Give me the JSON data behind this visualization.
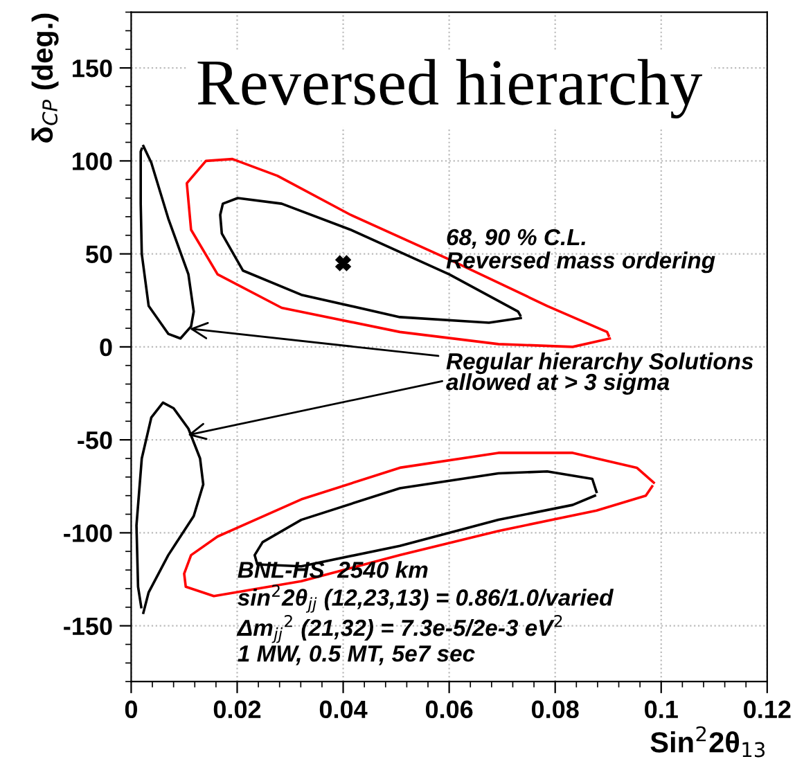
{
  "chart_data": {
    "type": "line",
    "title": "Reversed hierarchy",
    "xlabel": "Sin$^{2}$2θ$_{13}$",
    "ylabel": "δ$_{CP}$ (deg.)",
    "xlim": [
      0,
      0.12
    ],
    "ylim": [
      -180,
      180
    ],
    "xticks": [
      0,
      0.02,
      0.04,
      0.06,
      0.08,
      0.1,
      0.12
    ],
    "yticks": [
      -150,
      -100,
      -50,
      0,
      50,
      100,
      150
    ],
    "grid": true,
    "legend": false,
    "series": [
      {
        "color": "#ff0000",
        "x": [
          0.0903,
          0.0833,
          0.0693,
          0.0507,
          0.0284,
          0.0163,
          0.0113,
          0.0105,
          0.0141,
          0.0191,
          0.0276,
          0.0414,
          0.06,
          0.0785,
          0.0898,
          0.0901
        ],
        "values": [
          4.5,
          0,
          1.5,
          8,
          21,
          39,
          63,
          88,
          100,
          101,
          92,
          71,
          47,
          22,
          8,
          6
        ]
      },
      {
        "color": "#000000",
        "x": [
          0.0735,
          0.0675,
          0.0507,
          0.0321,
          0.0211,
          0.0171,
          0.0168,
          0.0173,
          0.0201,
          0.0284,
          0.0414,
          0.06,
          0.073,
          0.0734
        ],
        "values": [
          15.5,
          13,
          16,
          28,
          41,
          61,
          71,
          77,
          80,
          77,
          63,
          39,
          19,
          17
        ]
      },
      {
        "color": "#000000",
        "x": [
          0.0023,
          0.0038,
          0.007,
          0.0108,
          0.0118,
          0.0113,
          0.0093,
          0.007,
          0.0033,
          0.002,
          0.0018,
          0.0018,
          0.002
        ],
        "values": [
          108,
          99,
          69,
          39,
          19,
          11,
          4.5,
          7,
          22,
          50,
          77,
          105,
          106.5
        ]
      },
      {
        "color": "#000000",
        "x": [
          0.0023,
          0.0033,
          0.007,
          0.0118,
          0.0136,
          0.013,
          0.0108,
          0.008,
          0.006,
          0.0038,
          0.002,
          0.001,
          0.0013,
          0.0019
        ],
        "values": [
          -143,
          -132,
          -112,
          -91,
          -74,
          -60,
          -44,
          -33,
          -30,
          -38,
          -60,
          -96,
          -129,
          -140
        ]
      },
      {
        "color": "#ff0000",
        "x": [
          0.0986,
          0.0954,
          0.0833,
          0.0693,
          0.0507,
          0.0321,
          0.0163,
          0.0113,
          0.01,
          0.0103,
          0.0156,
          0.0321,
          0.0507,
          0.0693,
          0.0878,
          0.0971,
          0.0983
        ],
        "values": [
          -73,
          -65,
          -57,
          -57,
          -65,
          -82,
          -102,
          -112,
          -122,
          -129,
          -134,
          -126,
          -112,
          -99,
          -88,
          -80,
          -75
        ]
      },
      {
        "color": "#000000",
        "x": [
          0.0878,
          0.087,
          0.0785,
          0.0693,
          0.0507,
          0.0321,
          0.0248,
          0.0233,
          0.0238,
          0.0321,
          0.0507,
          0.0693,
          0.0833,
          0.0875
        ],
        "values": [
          -78,
          -71,
          -67,
          -68,
          -76,
          -93,
          -105,
          -112,
          -117,
          -118,
          -107,
          -93,
          -85,
          -80
        ]
      },
      {
        "type": "scatter",
        "marker": "cross",
        "color": "#000000",
        "x": [
          0.04
        ],
        "values": [
          45
        ]
      }
    ],
    "annotations": [
      "68, 90 % C.L.\nReversed mass ordering",
      {
        "text": "Regular hierarchy Solutions\nallowed at > 3 sigma",
        "x": 0.0103,
        "y": 10
      },
      "BNL-HS  2540 km\nsin$^{2}$2θ$_{jj}$ (12,23,13) = 0.86/1.0/varied\nΔm$_{jj}$$^{2}$ (21,32) = 7.3e-5/2e-3 eV$^{2}$\n1 MW, 0.5 MT, 5e7 sec"
    ]
  }
}
